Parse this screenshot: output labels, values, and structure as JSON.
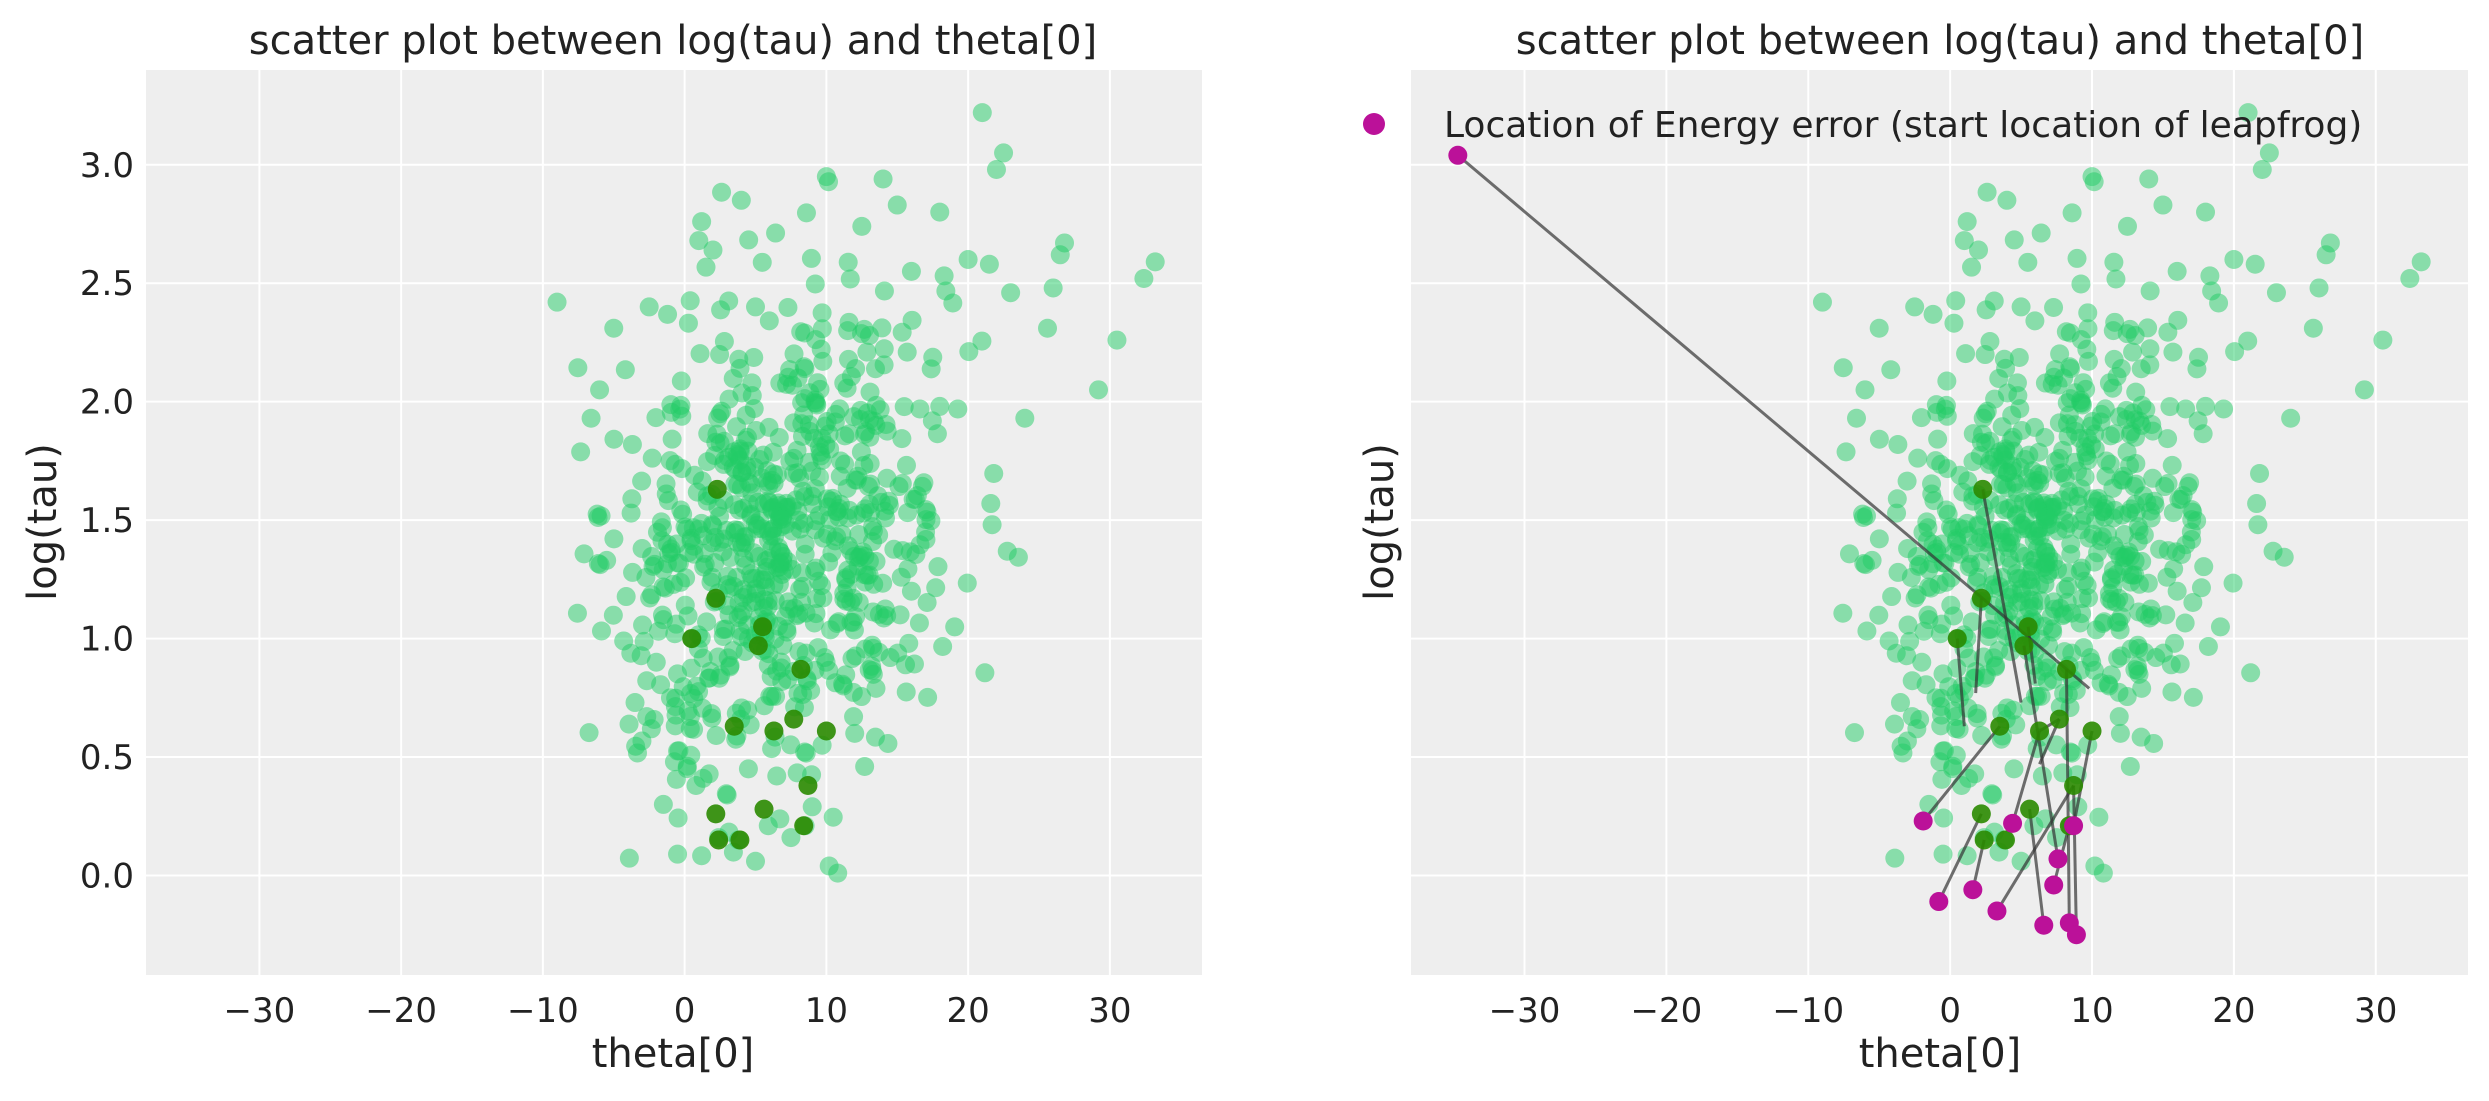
{
  "chart_data": [
    {
      "type": "scatter",
      "title": "scatter plot between log(tau) and theta[0]",
      "xlabel": "theta[0]",
      "ylabel": "log(tau)",
      "xlim": [
        -38,
        36.5
      ],
      "ylim": [
        -0.42,
        3.4
      ],
      "xticks": [
        -30,
        -20,
        -10,
        0,
        10,
        20,
        30
      ],
      "xtick_labels": [
        "−30",
        "−20",
        "−10",
        "0",
        "10",
        "20",
        "30"
      ],
      "yticks": [
        0.0,
        0.5,
        1.0,
        1.5,
        2.0,
        2.5,
        3.0
      ],
      "ytick_labels": [
        "0.0",
        "0.5",
        "1.0",
        "1.5",
        "2.0",
        "2.5",
        "3.0"
      ],
      "grid": true,
      "colors": {
        "samples": "#22cc66",
        "divergent": "#2a8a00",
        "background": "#eeeeee",
        "grid": "#ffffff"
      },
      "series": [
        {
          "name": "",
          "role": "samples",
          "cloud": {
            "n": 700,
            "x_mean": 6.5,
            "x_sd": 5.8,
            "y_mean": 1.45,
            "y_sd": 0.5
          },
          "points": [
            [
              -9,
              2.42
            ],
            [
              -6.6,
              1.93
            ],
            [
              -6,
              2.05
            ],
            [
              -5.5,
              1.33
            ],
            [
              -5,
              2.31
            ],
            [
              -4.3,
              0.99
            ],
            [
              -3,
              1.38
            ],
            [
              -3.5,
              0.73
            ],
            [
              -2.5,
              2.4
            ],
            [
              -2,
              0.9
            ],
            [
              -1.5,
              0.3
            ],
            [
              -0.5,
              0.09
            ],
            [
              1,
              2.68
            ],
            [
              1.2,
              2.76
            ],
            [
              2,
              2.64
            ],
            [
              4,
              2.85
            ],
            [
              5,
              2.4
            ],
            [
              10,
              2.95
            ],
            [
              12.5,
              2.74
            ],
            [
              14,
              2.94
            ],
            [
              15,
              2.83
            ],
            [
              16,
              2.55
            ],
            [
              18,
              2.8
            ],
            [
              20,
              2.6
            ],
            [
              21,
              3.22
            ],
            [
              21.5,
              2.58
            ],
            [
              22,
              2.98
            ],
            [
              22.5,
              3.05
            ],
            [
              23,
              2.46
            ],
            [
              24,
              1.93
            ],
            [
              25.6,
              2.31
            ],
            [
              26,
              2.48
            ],
            [
              26.5,
              2.62
            ],
            [
              26.8,
              2.67
            ],
            [
              29.2,
              2.05
            ],
            [
              30.5,
              2.26
            ],
            [
              32.4,
              2.52
            ],
            [
              33.2,
              2.59
            ],
            [
              21.6,
              1.57
            ],
            [
              18,
              1.98
            ],
            [
              17,
              1.45
            ],
            [
              16,
              1.2
            ],
            [
              15.2,
              1.1
            ],
            [
              14.5,
              0.92
            ],
            [
              13.5,
              0.79
            ],
            [
              12.7,
              0.46
            ],
            [
              12,
              0.6
            ],
            [
              10.2,
              0.04
            ],
            [
              10.8,
              0.01
            ],
            [
              8.5,
              0.21
            ],
            [
              9,
              0.29
            ],
            [
              7.5,
              0.16
            ],
            [
              5.9,
              0.21
            ],
            [
              5,
              0.06
            ],
            [
              3.8,
              0.15
            ],
            [
              2.4,
              0.16
            ],
            [
              1.3,
              0.41
            ],
            [
              0.4,
              0.62
            ],
            [
              11.2,
              0.8
            ],
            [
              9.7,
              0.55
            ],
            [
              -1,
              0.75
            ],
            [
              0.8,
              0.38
            ],
            [
              3,
              0.34
            ],
            [
              4.5,
              0.45
            ],
            [
              6.5,
              0.42
            ],
            [
              11.5,
              2.3
            ],
            [
              8,
              2.1
            ]
          ]
        },
        {
          "name": "",
          "role": "divergent",
          "points": [
            [
              2.3,
              1.63
            ],
            [
              2.2,
              1.17
            ],
            [
              0.5,
              1.0
            ],
            [
              5.5,
              1.05
            ],
            [
              5.2,
              0.97
            ],
            [
              8.2,
              0.87
            ],
            [
              3.5,
              0.63
            ],
            [
              6.3,
              0.61
            ],
            [
              7.7,
              0.66
            ],
            [
              10,
              0.61
            ],
            [
              8.7,
              0.38
            ],
            [
              2.2,
              0.26
            ],
            [
              5.6,
              0.28
            ],
            [
              8.4,
              0.21
            ],
            [
              2.4,
              0.15
            ],
            [
              3.9,
              0.15
            ]
          ]
        }
      ]
    },
    {
      "type": "scatter",
      "title": "scatter plot between log(tau) and theta[0]",
      "xlabel": "theta[0]",
      "ylabel": "log(tau)",
      "xlim": [
        -38,
        36.5
      ],
      "ylim": [
        -0.42,
        3.4
      ],
      "xticks": [
        -30,
        -20,
        -10,
        0,
        10,
        20,
        30
      ],
      "xtick_labels": [
        "−30",
        "−20",
        "−10",
        "0",
        "10",
        "20",
        "30"
      ],
      "yticks": [
        0.0,
        0.5,
        1.0,
        1.5,
        2.0,
        2.5,
        3.0
      ],
      "grid": true,
      "legend": {
        "position": "top-left",
        "entries": [
          {
            "label": "Location of Energy error (start location of leapfrog)",
            "color": "#bb1199"
          }
        ]
      },
      "colors": {
        "samples": "#22cc66",
        "divergent": "#2a8a00",
        "energy_error": "#bb1199",
        "segment": "#333333",
        "background": "#eeeeee",
        "grid": "#ffffff"
      },
      "series": [
        {
          "name": "",
          "role": "samples",
          "same_as_left": true
        },
        {
          "name": "",
          "role": "divergent",
          "same_as_left": true
        },
        {
          "name": "Location of Energy error (start location of leapfrog)",
          "role": "energy_error",
          "points": [
            [
              -34.7,
              3.04
            ],
            [
              -1.9,
              0.23
            ],
            [
              -0.8,
              -0.11
            ],
            [
              1.6,
              -0.06
            ],
            [
              3.3,
              -0.15
            ],
            [
              4.4,
              0.22
            ],
            [
              6.6,
              -0.21
            ],
            [
              7.3,
              -0.04
            ],
            [
              7.6,
              0.07
            ],
            [
              8.4,
              -0.2
            ],
            [
              8.9,
              -0.25
            ],
            [
              8.7,
              0.21
            ]
          ]
        },
        {
          "name": "",
          "role": "segments",
          "pairs": [
            [
              [
                -34.7,
                3.04
              ],
              [
                9.8,
                0.79
              ]
            ],
            [
              [
                -1.9,
                0.23
              ],
              [
                3.5,
                0.63
              ]
            ],
            [
              [
                -0.8,
                -0.11
              ],
              [
                2.2,
                0.26
              ]
            ],
            [
              [
                1.6,
                -0.06
              ],
              [
                2.4,
                0.15
              ]
            ],
            [
              [
                3.3,
                -0.15
              ],
              [
                8.7,
                0.38
              ]
            ],
            [
              [
                4.4,
                0.22
              ],
              [
                6.3,
                0.61
              ]
            ],
            [
              [
                6.6,
                -0.21
              ],
              [
                5.6,
                0.28
              ]
            ],
            [
              [
                7.3,
                -0.04
              ],
              [
                8.4,
                0.21
              ]
            ],
            [
              [
                7.6,
                0.07
              ],
              [
                5.2,
                0.97
              ]
            ],
            [
              [
                8.4,
                -0.2
              ],
              [
                8.2,
                0.87
              ]
            ],
            [
              [
                8.9,
                -0.25
              ],
              [
                8.7,
                0.38
              ]
            ],
            [
              [
                8.7,
                0.21
              ],
              [
                10,
                0.61
              ]
            ],
            [
              [
                2.3,
                1.63
              ],
              [
                5,
                0.73
              ]
            ],
            [
              [
                2.2,
                1.17
              ],
              [
                1.8,
                0.77
              ]
            ],
            [
              [
                0.5,
                1.0
              ],
              [
                1,
                0.63
              ]
            ],
            [
              [
                5.5,
                1.05
              ],
              [
                6,
                0.81
              ]
            ],
            [
              [
                6.3,
                0.61
              ],
              [
                7.7,
                0.66
              ]
            ],
            [
              [
                7.7,
                0.66
              ],
              [
                6.3,
                0.47
              ]
            ]
          ]
        }
      ]
    }
  ]
}
